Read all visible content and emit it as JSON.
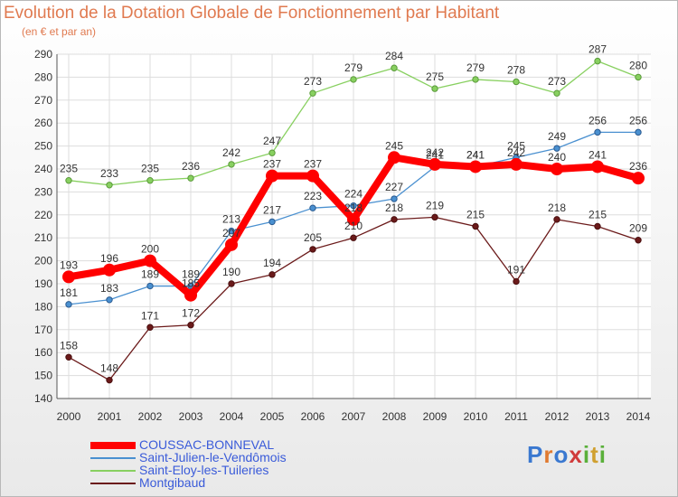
{
  "chart_data": {
    "type": "line",
    "title": "Evolution de la Dotation Globale de Fonctionnement par Habitant",
    "subtitle": "(en € et par an)",
    "x": [
      "2000",
      "2001",
      "2002",
      "2003",
      "2004",
      "2005",
      "2006",
      "2007",
      "2008",
      "2009",
      "2010",
      "2011",
      "2012",
      "2013",
      "2014"
    ],
    "ylim": [
      140,
      290
    ],
    "yticks": [
      140,
      150,
      160,
      170,
      180,
      190,
      200,
      210,
      220,
      230,
      240,
      250,
      260,
      270,
      280,
      290
    ],
    "grid": true,
    "legend_position": "bottom-left",
    "series": [
      {
        "name": "COUSSAC-BONNEVAL",
        "color": "#ff0000",
        "values": [
          193,
          196,
          200,
          185,
          207,
          237,
          237,
          218,
          245,
          242,
          241,
          242,
          240,
          241,
          236
        ],
        "labels": [
          "193",
          "196",
          "200",
          "185",
          "207",
          "237",
          "237",
          "218",
          "245",
          "242",
          "241",
          "242",
          "240",
          "241",
          "236"
        ]
      },
      {
        "name": "Saint-Julien-le-Vendômois",
        "color": "#4a90d0",
        "values": [
          181,
          183,
          189,
          189,
          213,
          217,
          223,
          224,
          227,
          241,
          241,
          245,
          249,
          256,
          256
        ],
        "labels": [
          "181",
          "183",
          "189",
          "189",
          "213",
          "217",
          "223",
          "224",
          "227",
          "241",
          "241",
          "245",
          "249",
          "256",
          "256"
        ]
      },
      {
        "name": "Saint-Eloy-les-Tuileries",
        "color": "#88d060",
        "values": [
          235,
          233,
          235,
          236,
          242,
          247,
          273,
          279,
          284,
          275,
          279,
          278,
          273,
          287,
          280
        ],
        "labels": [
          "235",
          "233",
          "235",
          "236",
          "242",
          "247",
          "273",
          "279",
          "284",
          "275",
          "279",
          "278",
          "273",
          "287",
          "280"
        ]
      },
      {
        "name": "Montgibaud",
        "color": "#6b1a1a",
        "values": [
          158,
          148,
          171,
          172,
          190,
          194,
          205,
          210,
          218,
          219,
          215,
          191,
          218,
          215,
          209
        ],
        "labels": [
          "158",
          "148",
          "171",
          "172",
          "190",
          "194",
          "205",
          "210",
          "218",
          "219",
          "215",
          "191",
          "218",
          "215",
          "209"
        ]
      }
    ]
  },
  "logo": {
    "letters": [
      "P",
      "r",
      "o",
      "x",
      "i",
      "t",
      "i"
    ],
    "colors": [
      "#3a78d0",
      "#e07a30",
      "#3a78d0",
      "#d03a3a",
      "#5ab03a",
      "#d0a030",
      "#5ab03a"
    ]
  }
}
